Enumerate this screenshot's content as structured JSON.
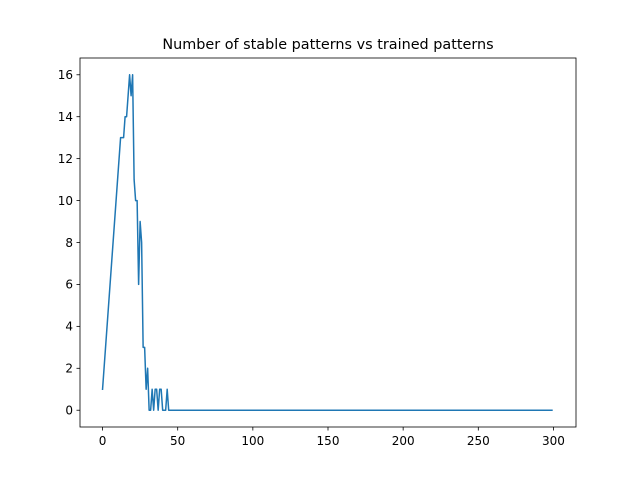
{
  "chart_data": {
    "type": "line",
    "title": "Number of stable patterns vs trained patterns",
    "xlabel": "",
    "ylabel": "",
    "xlim": [
      -15,
      315
    ],
    "ylim": [
      -0.8,
      16.8
    ],
    "xticks": [
      0,
      50,
      100,
      150,
      200,
      250,
      300
    ],
    "yticks": [
      0,
      2,
      4,
      6,
      8,
      10,
      12,
      14,
      16
    ],
    "grid": false,
    "legend": "none",
    "line_color": "#1f77b4",
    "series": [
      {
        "x": [
          0,
          12,
          14,
          15,
          16,
          17,
          18,
          19,
          20,
          21,
          22,
          23,
          24,
          25,
          26,
          27,
          28,
          29,
          30,
          31,
          32,
          33,
          34,
          35,
          36,
          37,
          38,
          39,
          40,
          41,
          42,
          43,
          44,
          45,
          46,
          47,
          299
        ],
        "y": [
          1,
          13,
          13,
          14,
          14,
          15,
          16,
          15,
          16,
          11,
          10,
          10,
          6,
          9,
          8,
          3,
          3,
          1,
          2,
          0,
          0,
          1,
          0,
          1,
          1,
          0,
          1,
          1,
          0,
          0,
          0,
          1,
          0,
          0,
          0,
          0,
          0
        ]
      }
    ]
  }
}
